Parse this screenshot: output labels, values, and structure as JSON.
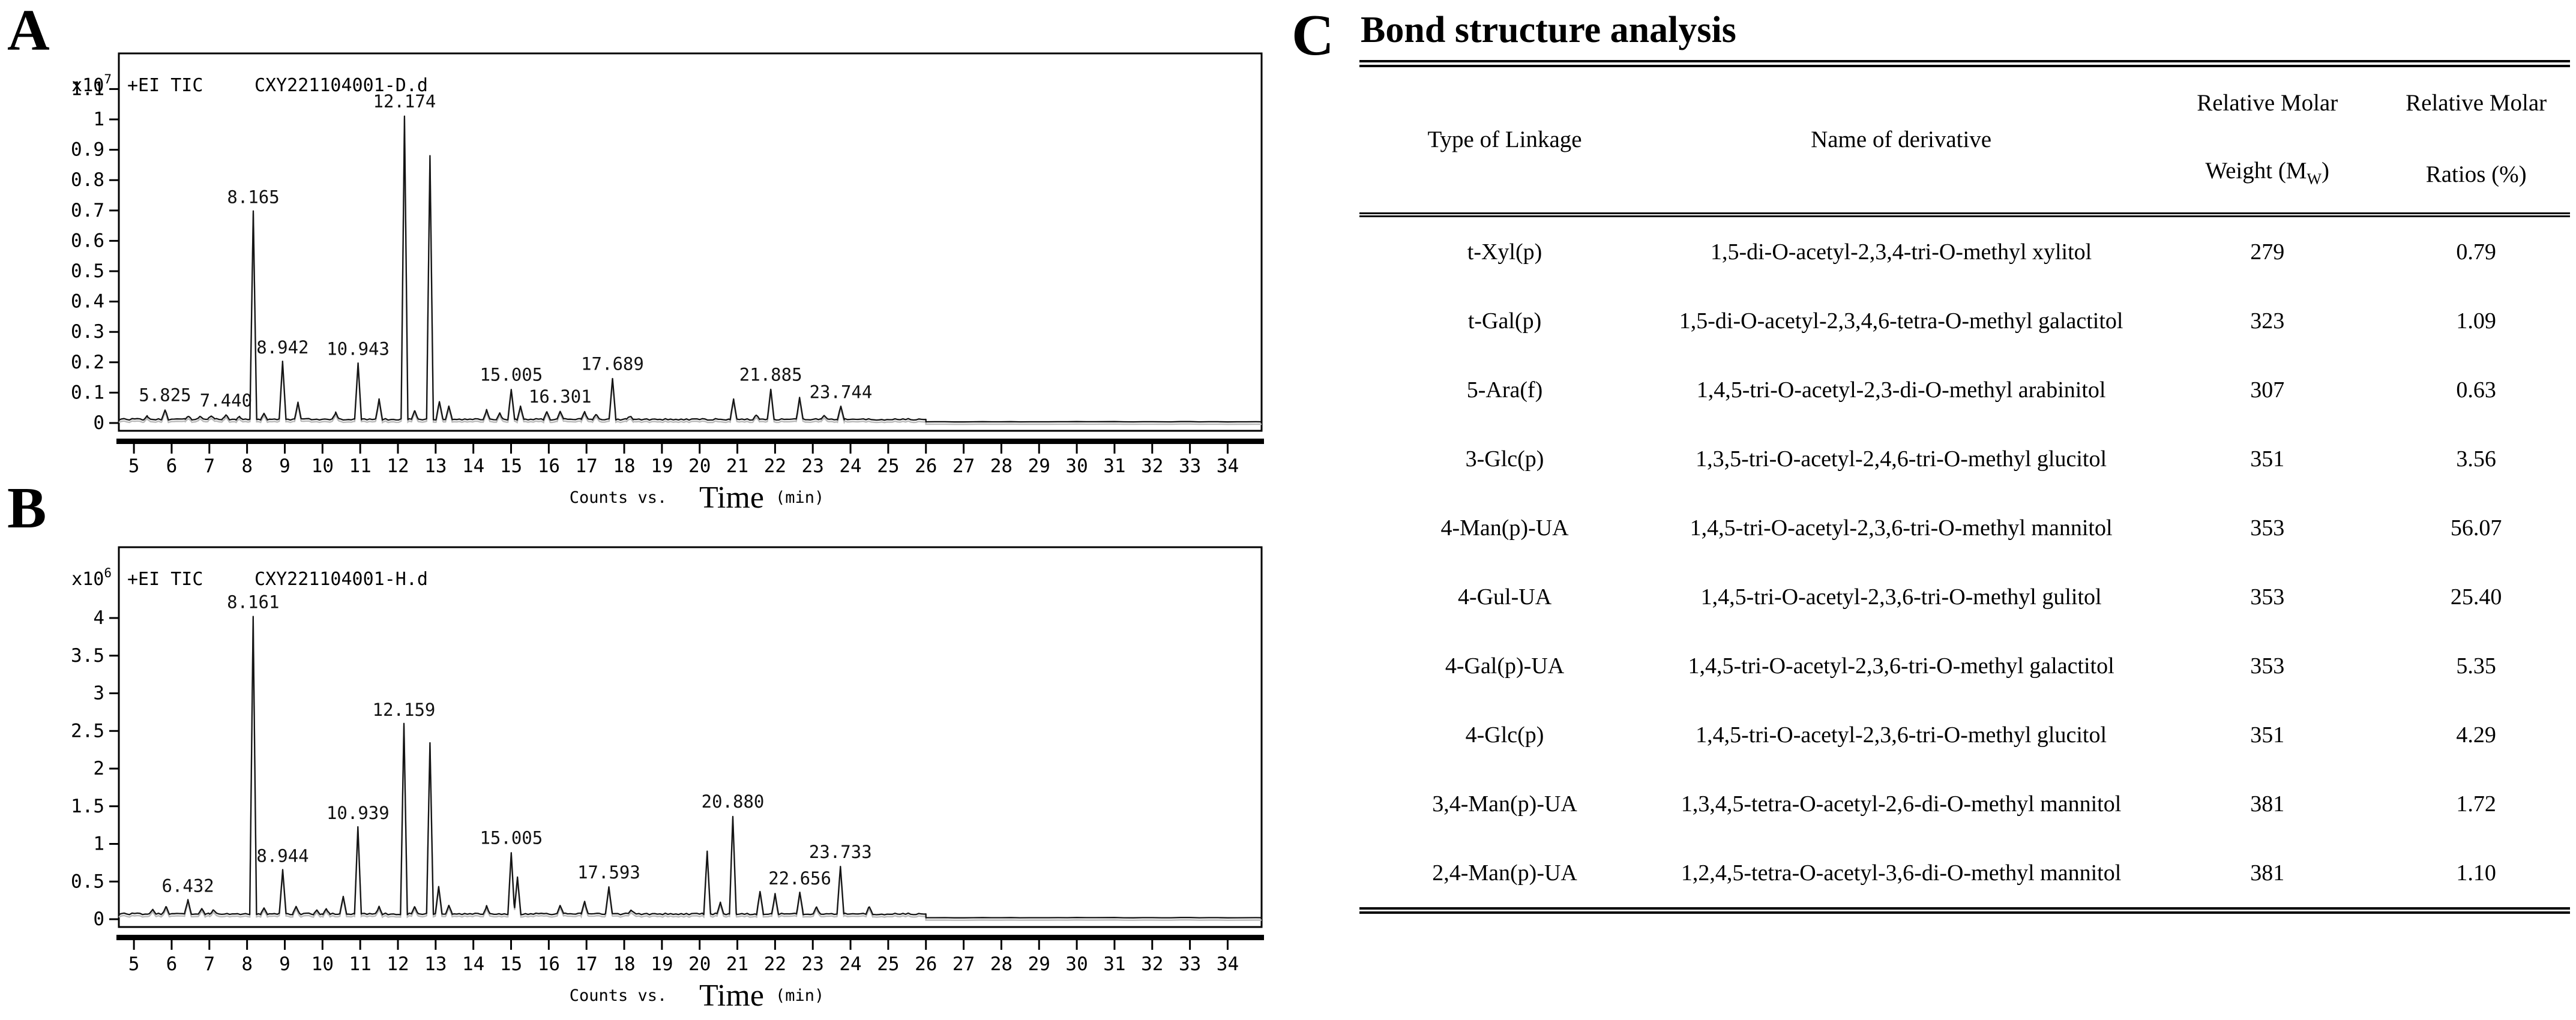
{
  "panels": {
    "a_label": "A",
    "b_label": "B",
    "c_label": "C"
  },
  "chart_data": [
    {
      "id": "A",
      "type": "line",
      "title_left": "+EI TIC",
      "sample": "CXY221104001-D.d",
      "y_scale_label": "x10",
      "y_scale_exp": "7",
      "x_axis_label_small": "Counts vs.",
      "x_axis_label_big": "Time",
      "x_axis_label_unit": "(min)",
      "xlim": [
        4.6,
        34.9
      ],
      "ylim": [
        0,
        1.22
      ],
      "x_ticks": [
        5,
        6,
        7,
        8,
        9,
        10,
        11,
        12,
        13,
        14,
        15,
        16,
        17,
        18,
        19,
        20,
        21,
        22,
        23,
        24,
        25,
        26,
        27,
        28,
        29,
        30,
        31,
        32,
        33,
        34
      ],
      "y_ticks": [
        {
          "v": 0,
          "label": "0"
        },
        {
          "v": 0.1,
          "label": "0.1"
        },
        {
          "v": 0.2,
          "label": "0.2"
        },
        {
          "v": 0.3,
          "label": "0.3"
        },
        {
          "v": 0.4,
          "label": "0.4"
        },
        {
          "v": 0.5,
          "label": "0.5"
        },
        {
          "v": 0.6,
          "label": "0.6"
        },
        {
          "v": 0.7,
          "label": "0.7"
        },
        {
          "v": 0.8,
          "label": "0.8"
        },
        {
          "v": 0.9,
          "label": "0.9"
        },
        {
          "v": 1,
          "label": "1"
        },
        {
          "v": 1.1,
          "label": "1.1"
        }
      ],
      "baseline": 0.012,
      "baseline_after_step": 0.004,
      "step_time": 26,
      "noise": 0.005,
      "peaks": [
        {
          "t": 5.35,
          "h": 0.01
        },
        {
          "t": 5.825,
          "h": 0.032,
          "label": "5.825"
        },
        {
          "t": 6.45,
          "h": 0.012
        },
        {
          "t": 6.75,
          "h": 0.009
        },
        {
          "t": 7.05,
          "h": 0.013
        },
        {
          "t": 7.44,
          "h": 0.015,
          "label": "7.440"
        },
        {
          "t": 7.8,
          "h": 0.009
        },
        {
          "t": 8.165,
          "h": 0.685,
          "label": "8.165"
        },
        {
          "t": 8.45,
          "h": 0.022
        },
        {
          "t": 8.942,
          "h": 0.19,
          "label": "8.942"
        },
        {
          "t": 9.35,
          "h": 0.055
        },
        {
          "t": 10.35,
          "h": 0.022
        },
        {
          "t": 10.943,
          "h": 0.185,
          "label": "10.943"
        },
        {
          "t": 11.5,
          "h": 0.065
        },
        {
          "t": 12.174,
          "h": 1.0,
          "label": "12.174"
        },
        {
          "t": 12.45,
          "h": 0.03
        },
        {
          "t": 12.85,
          "h": 0.87
        },
        {
          "t": 13.1,
          "h": 0.06
        },
        {
          "t": 13.35,
          "h": 0.045
        },
        {
          "t": 14.35,
          "h": 0.03
        },
        {
          "t": 14.7,
          "h": 0.02
        },
        {
          "t": 15.005,
          "h": 0.1,
          "label": "15.005"
        },
        {
          "t": 15.25,
          "h": 0.045
        },
        {
          "t": 15.95,
          "h": 0.025
        },
        {
          "t": 16.301,
          "h": 0.028,
          "label": "16.301"
        },
        {
          "t": 16.95,
          "h": 0.026
        },
        {
          "t": 17.25,
          "h": 0.016
        },
        {
          "t": 17.689,
          "h": 0.135,
          "label": "17.689"
        },
        {
          "t": 18.15,
          "h": 0.01
        },
        {
          "t": 20.9,
          "h": 0.065
        },
        {
          "t": 21.5,
          "h": 0.016
        },
        {
          "t": 21.885,
          "h": 0.1,
          "label": "21.885"
        },
        {
          "t": 22.65,
          "h": 0.07
        },
        {
          "t": 23.3,
          "h": 0.014
        },
        {
          "t": 23.744,
          "h": 0.042,
          "label": "23.744"
        }
      ]
    },
    {
      "id": "B",
      "type": "line",
      "title_left": "+EI TIC",
      "sample": "CXY221104001-H.d",
      "y_scale_label": "x10",
      "y_scale_exp": "6",
      "x_axis_label_small": "Counts vs.",
      "x_axis_label_big": "Time",
      "x_axis_label_unit": "(min)",
      "xlim": [
        4.6,
        34.9
      ],
      "ylim": [
        0,
        4.94
      ],
      "x_ticks": [
        5,
        6,
        7,
        8,
        9,
        10,
        11,
        12,
        13,
        14,
        15,
        16,
        17,
        18,
        19,
        20,
        21,
        22,
        23,
        24,
        25,
        26,
        27,
        28,
        29,
        30,
        31,
        32,
        33,
        34
      ],
      "y_ticks": [
        {
          "v": 0,
          "label": "0"
        },
        {
          "v": 0.5,
          "label": "0.5"
        },
        {
          "v": 1,
          "label": "1"
        },
        {
          "v": 1.5,
          "label": "1.5"
        },
        {
          "v": 2,
          "label": "2"
        },
        {
          "v": 2.5,
          "label": "2.5"
        },
        {
          "v": 3,
          "label": "3"
        },
        {
          "v": 3.5,
          "label": "3.5"
        },
        {
          "v": 4,
          "label": "4"
        }
      ],
      "baseline": 0.07,
      "baseline_after_step": 0.02,
      "step_time": 26,
      "noise": 0.022,
      "peaks": [
        {
          "t": 5.5,
          "h": 0.06
        },
        {
          "t": 5.85,
          "h": 0.1
        },
        {
          "t": 6.432,
          "h": 0.18,
          "label": "6.432"
        },
        {
          "t": 6.8,
          "h": 0.06
        },
        {
          "t": 7.1,
          "h": 0.05
        },
        {
          "t": 8.161,
          "h": 3.95,
          "label": "8.161"
        },
        {
          "t": 8.45,
          "h": 0.09
        },
        {
          "t": 8.944,
          "h": 0.58,
          "label": "8.944"
        },
        {
          "t": 9.3,
          "h": 0.1
        },
        {
          "t": 9.85,
          "h": 0.05
        },
        {
          "t": 10.1,
          "h": 0.06
        },
        {
          "t": 10.55,
          "h": 0.24
        },
        {
          "t": 10.939,
          "h": 1.15,
          "label": "10.939"
        },
        {
          "t": 11.5,
          "h": 0.09
        },
        {
          "t": 12.159,
          "h": 2.52,
          "label": "12.159"
        },
        {
          "t": 12.45,
          "h": 0.1
        },
        {
          "t": 12.85,
          "h": 2.28
        },
        {
          "t": 13.08,
          "h": 0.36
        },
        {
          "t": 13.35,
          "h": 0.12
        },
        {
          "t": 14.35,
          "h": 0.1
        },
        {
          "t": 15.005,
          "h": 0.82,
          "label": "15.005"
        },
        {
          "t": 15.17,
          "h": 0.5
        },
        {
          "t": 16.3,
          "h": 0.12
        },
        {
          "t": 16.95,
          "h": 0.17
        },
        {
          "t": 17.593,
          "h": 0.36,
          "label": "17.593"
        },
        {
          "t": 18.2,
          "h": 0.05
        },
        {
          "t": 20.2,
          "h": 0.83
        },
        {
          "t": 20.55,
          "h": 0.15
        },
        {
          "t": 20.88,
          "h": 1.3,
          "label": "20.880"
        },
        {
          "t": 21.6,
          "h": 0.3
        },
        {
          "t": 22.0,
          "h": 0.27
        },
        {
          "t": 22.656,
          "h": 0.28,
          "label": "22.656"
        },
        {
          "t": 23.1,
          "h": 0.09
        },
        {
          "t": 23.733,
          "h": 0.63,
          "label": "23.733"
        },
        {
          "t": 24.5,
          "h": 0.1
        }
      ]
    }
  ],
  "table": {
    "title": "Bond structure analysis",
    "headers": {
      "linkage": "Type of Linkage",
      "derivative": "Name of derivative",
      "weight_line1": "Relative Molar",
      "weight_line2_pre": "Weight (M",
      "weight_line2_sub": "W",
      "weight_line2_post": ")",
      "ratio_line1": "Relative Molar",
      "ratio_line2": "Ratios (%)"
    },
    "rows": [
      {
        "linkage": "t-Xyl(p)",
        "derivative": "1,5-di-O-acetyl-2,3,4-tri-O-methyl xylitol",
        "weight": "279",
        "ratio": "0.79"
      },
      {
        "linkage": "t-Gal(p)",
        "derivative": "1,5-di-O-acetyl-2,3,4,6-tetra-O-methyl galactitol",
        "weight": "323",
        "ratio": "1.09"
      },
      {
        "linkage": "5-Ara(f)",
        "derivative": "1,4,5-tri-O-acetyl-2,3-di-O-methyl arabinitol",
        "weight": "307",
        "ratio": "0.63"
      },
      {
        "linkage": "3-Glc(p)",
        "derivative": "1,3,5-tri-O-acetyl-2,4,6-tri-O-methyl glucitol",
        "weight": "351",
        "ratio": "3.56"
      },
      {
        "linkage": "4-Man(p)-UA",
        "derivative": "1,4,5-tri-O-acetyl-2,3,6-tri-O-methyl mannitol",
        "weight": "353",
        "ratio": "56.07"
      },
      {
        "linkage": "4-Gul-UA",
        "derivative": "1,4,5-tri-O-acetyl-2,3,6-tri-O-methyl gulitol",
        "weight": "353",
        "ratio": "25.40"
      },
      {
        "linkage": "4-Gal(p)-UA",
        "derivative": "1,4,5-tri-O-acetyl-2,3,6-tri-O-methyl galactitol",
        "weight": "353",
        "ratio": "5.35"
      },
      {
        "linkage": "4-Glc(p)",
        "derivative": "1,4,5-tri-O-acetyl-2,3,6-tri-O-methyl glucitol",
        "weight": "351",
        "ratio": "4.29"
      },
      {
        "linkage": "3,4-Man(p)-UA",
        "derivative": "1,3,4,5-tetra-O-acetyl-2,6-di-O-methyl mannitol",
        "weight": "381",
        "ratio": "1.72"
      },
      {
        "linkage": "2,4-Man(p)-UA",
        "derivative": "1,2,4,5-tetra-O-acetyl-3,6-di-O-methyl mannitol",
        "weight": "381",
        "ratio": "1.10"
      }
    ]
  }
}
